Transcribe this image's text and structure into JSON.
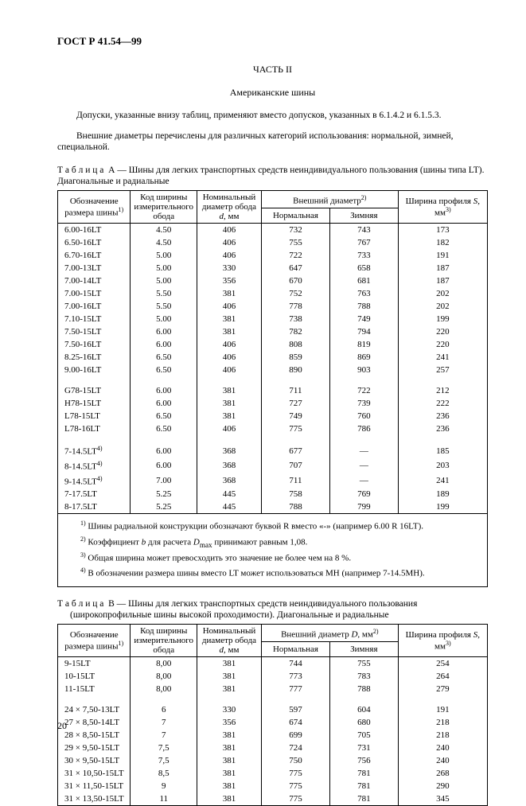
{
  "header": "ГОСТ Р 41.54—99",
  "partTitle": "ЧАСТЬ II",
  "subtitle": "Американские шины",
  "para1": "Допуски, указанные внизу таблиц, применяют вместо допусков, указанных в 6.1.4.2 и 6.1.5.3.",
  "para2": "Внешние диаметры перечислены для различных категорий использования: нормальной, зимней, специальной.",
  "tableA": {
    "captionPrefix": "Т а б л и ц а",
    "captionLetter": "А — ",
    "captionText": "Шины для легких транспортных средств неиндивидуального пользования (шины типа LT). Диагональные и радиальные",
    "headers": {
      "c1": "Обозначение размера шины",
      "c1sup": "1)",
      "c2": "Код ширины измерительного обода",
      "c3a": "Номинальный диаметр обода ",
      "c3i": "d",
      "c3b": ", мм",
      "c4": "Внешний диаметр",
      "c4sup": "2)",
      "c4a": "Нормальная",
      "c4b": "Зимняя",
      "c5a": "Ширина профиля ",
      "c5i": "S",
      "c5b": ", мм",
      "c5sup": "3)"
    },
    "groups": [
      [
        [
          "6.00-16LT",
          "4.50",
          "406",
          "732",
          "743",
          "173"
        ],
        [
          "6.50-16LT",
          "4.50",
          "406",
          "755",
          "767",
          "182"
        ],
        [
          "6.70-16LT",
          "5.00",
          "406",
          "722",
          "733",
          "191"
        ],
        [
          "7.00-13LT",
          "5.00",
          "330",
          "647",
          "658",
          "187"
        ],
        [
          "7.00-14LT",
          "5.00",
          "356",
          "670",
          "681",
          "187"
        ],
        [
          "7.00-15LT",
          "5.50",
          "381",
          "752",
          "763",
          "202"
        ],
        [
          "7.00-16LT",
          "5.50",
          "406",
          "778",
          "788",
          "202"
        ],
        [
          "7.10-15LT",
          "5.00",
          "381",
          "738",
          "749",
          "199"
        ],
        [
          "7.50-15LT",
          "6.00",
          "381",
          "782",
          "794",
          "220"
        ],
        [
          "7.50-16LT",
          "6.00",
          "406",
          "808",
          "819",
          "220"
        ],
        [
          "8.25-16LT",
          "6.50",
          "406",
          "859",
          "869",
          "241"
        ],
        [
          "9.00-16LT",
          "6.50",
          "406",
          "890",
          "903",
          "257"
        ]
      ],
      [
        [
          "G78-15LT",
          "6.00",
          "381",
          "711",
          "722",
          "212"
        ],
        [
          "H78-15LT",
          "6.00",
          "381",
          "727",
          "739",
          "222"
        ],
        [
          "L78-15LT",
          "6.50",
          "381",
          "749",
          "760",
          "236"
        ],
        [
          "L78-16LT",
          "6.50",
          "406",
          "775",
          "786",
          "236"
        ]
      ],
      [
        [
          "7-14.5LT<sup>4)</sup>",
          "6.00",
          "368",
          "677",
          "—",
          "185"
        ],
        [
          "8-14.5LT<sup>4)</sup>",
          "6.00",
          "368",
          "707",
          "—",
          "203"
        ],
        [
          "9-14.5LT<sup>4)</sup>",
          "7.00",
          "368",
          "711",
          "—",
          "241"
        ],
        [
          "7-17.5LT",
          "5.25",
          "445",
          "758",
          "769",
          "189"
        ],
        [
          "8-17.5LT",
          "5.25",
          "445",
          "788",
          "799",
          "199"
        ]
      ]
    ],
    "notes": [
      "<sup>1)</sup> Шины радиальной конструкции обозначают буквой  R  вместо «-» (например 6.00 R 16LT).",
      "<sup>2)</sup> Коэффициент <i>b</i> для расчета <i>D</i><sub>max</sub> принимают равным 1,08.",
      "<sup>3)</sup> Общая ширина может превосходить это значение не более чем на 8 %.",
      "<sup>4)</sup> В обозначении размера шины вместо LT может использоваться MH (например 7-14.5MH)."
    ]
  },
  "tableB": {
    "captionPrefix": "Т а б л и ц а",
    "captionLetter": "В — ",
    "captionText1": "Шины для легких транспортных средств неиндивидуального пользования",
    "captionText2": "(широкопрофильные шины высокой проходимости). Диагональные и радиальные",
    "headers": {
      "c4": "Внешний диаметр <i>D</i>, мм"
    },
    "groups": [
      [
        [
          "9-15LT",
          "8,00",
          "381",
          "744",
          "755",
          "254"
        ],
        [
          "10-15LT",
          "8,00",
          "381",
          "773",
          "783",
          "264"
        ],
        [
          "11-15LT",
          "8,00",
          "381",
          "777",
          "788",
          "279"
        ]
      ],
      [
        [
          "24 × 7,50-13LT",
          "6",
          "330",
          "597",
          "604",
          "191"
        ],
        [
          "27 × 8,50-14LT",
          "7",
          "356",
          "674",
          "680",
          "218"
        ],
        [
          "28 × 8,50-15LT",
          "7",
          "381",
          "699",
          "705",
          "218"
        ],
        [
          "29 × 9,50-15LT",
          "7,5",
          "381",
          "724",
          "731",
          "240"
        ],
        [
          "30 × 9,50-15LT",
          "7,5",
          "381",
          "750",
          "756",
          "240"
        ],
        [
          "31 × 10,50-15LT",
          "8,5",
          "381",
          "775",
          "781",
          "268"
        ],
        [
          "31 × 11,50-15LT",
          "9",
          "381",
          "775",
          "781",
          "290"
        ],
        [
          "31 × 13,50-15LT",
          "11",
          "381",
          "775",
          "781",
          "345"
        ]
      ]
    ]
  },
  "pageNum": "20",
  "cols": {
    "c1w": "17%",
    "c2w": "15%",
    "c3w": "15%",
    "c4aw": "16%",
    "c4bw": "16%",
    "c5w": "21%"
  }
}
